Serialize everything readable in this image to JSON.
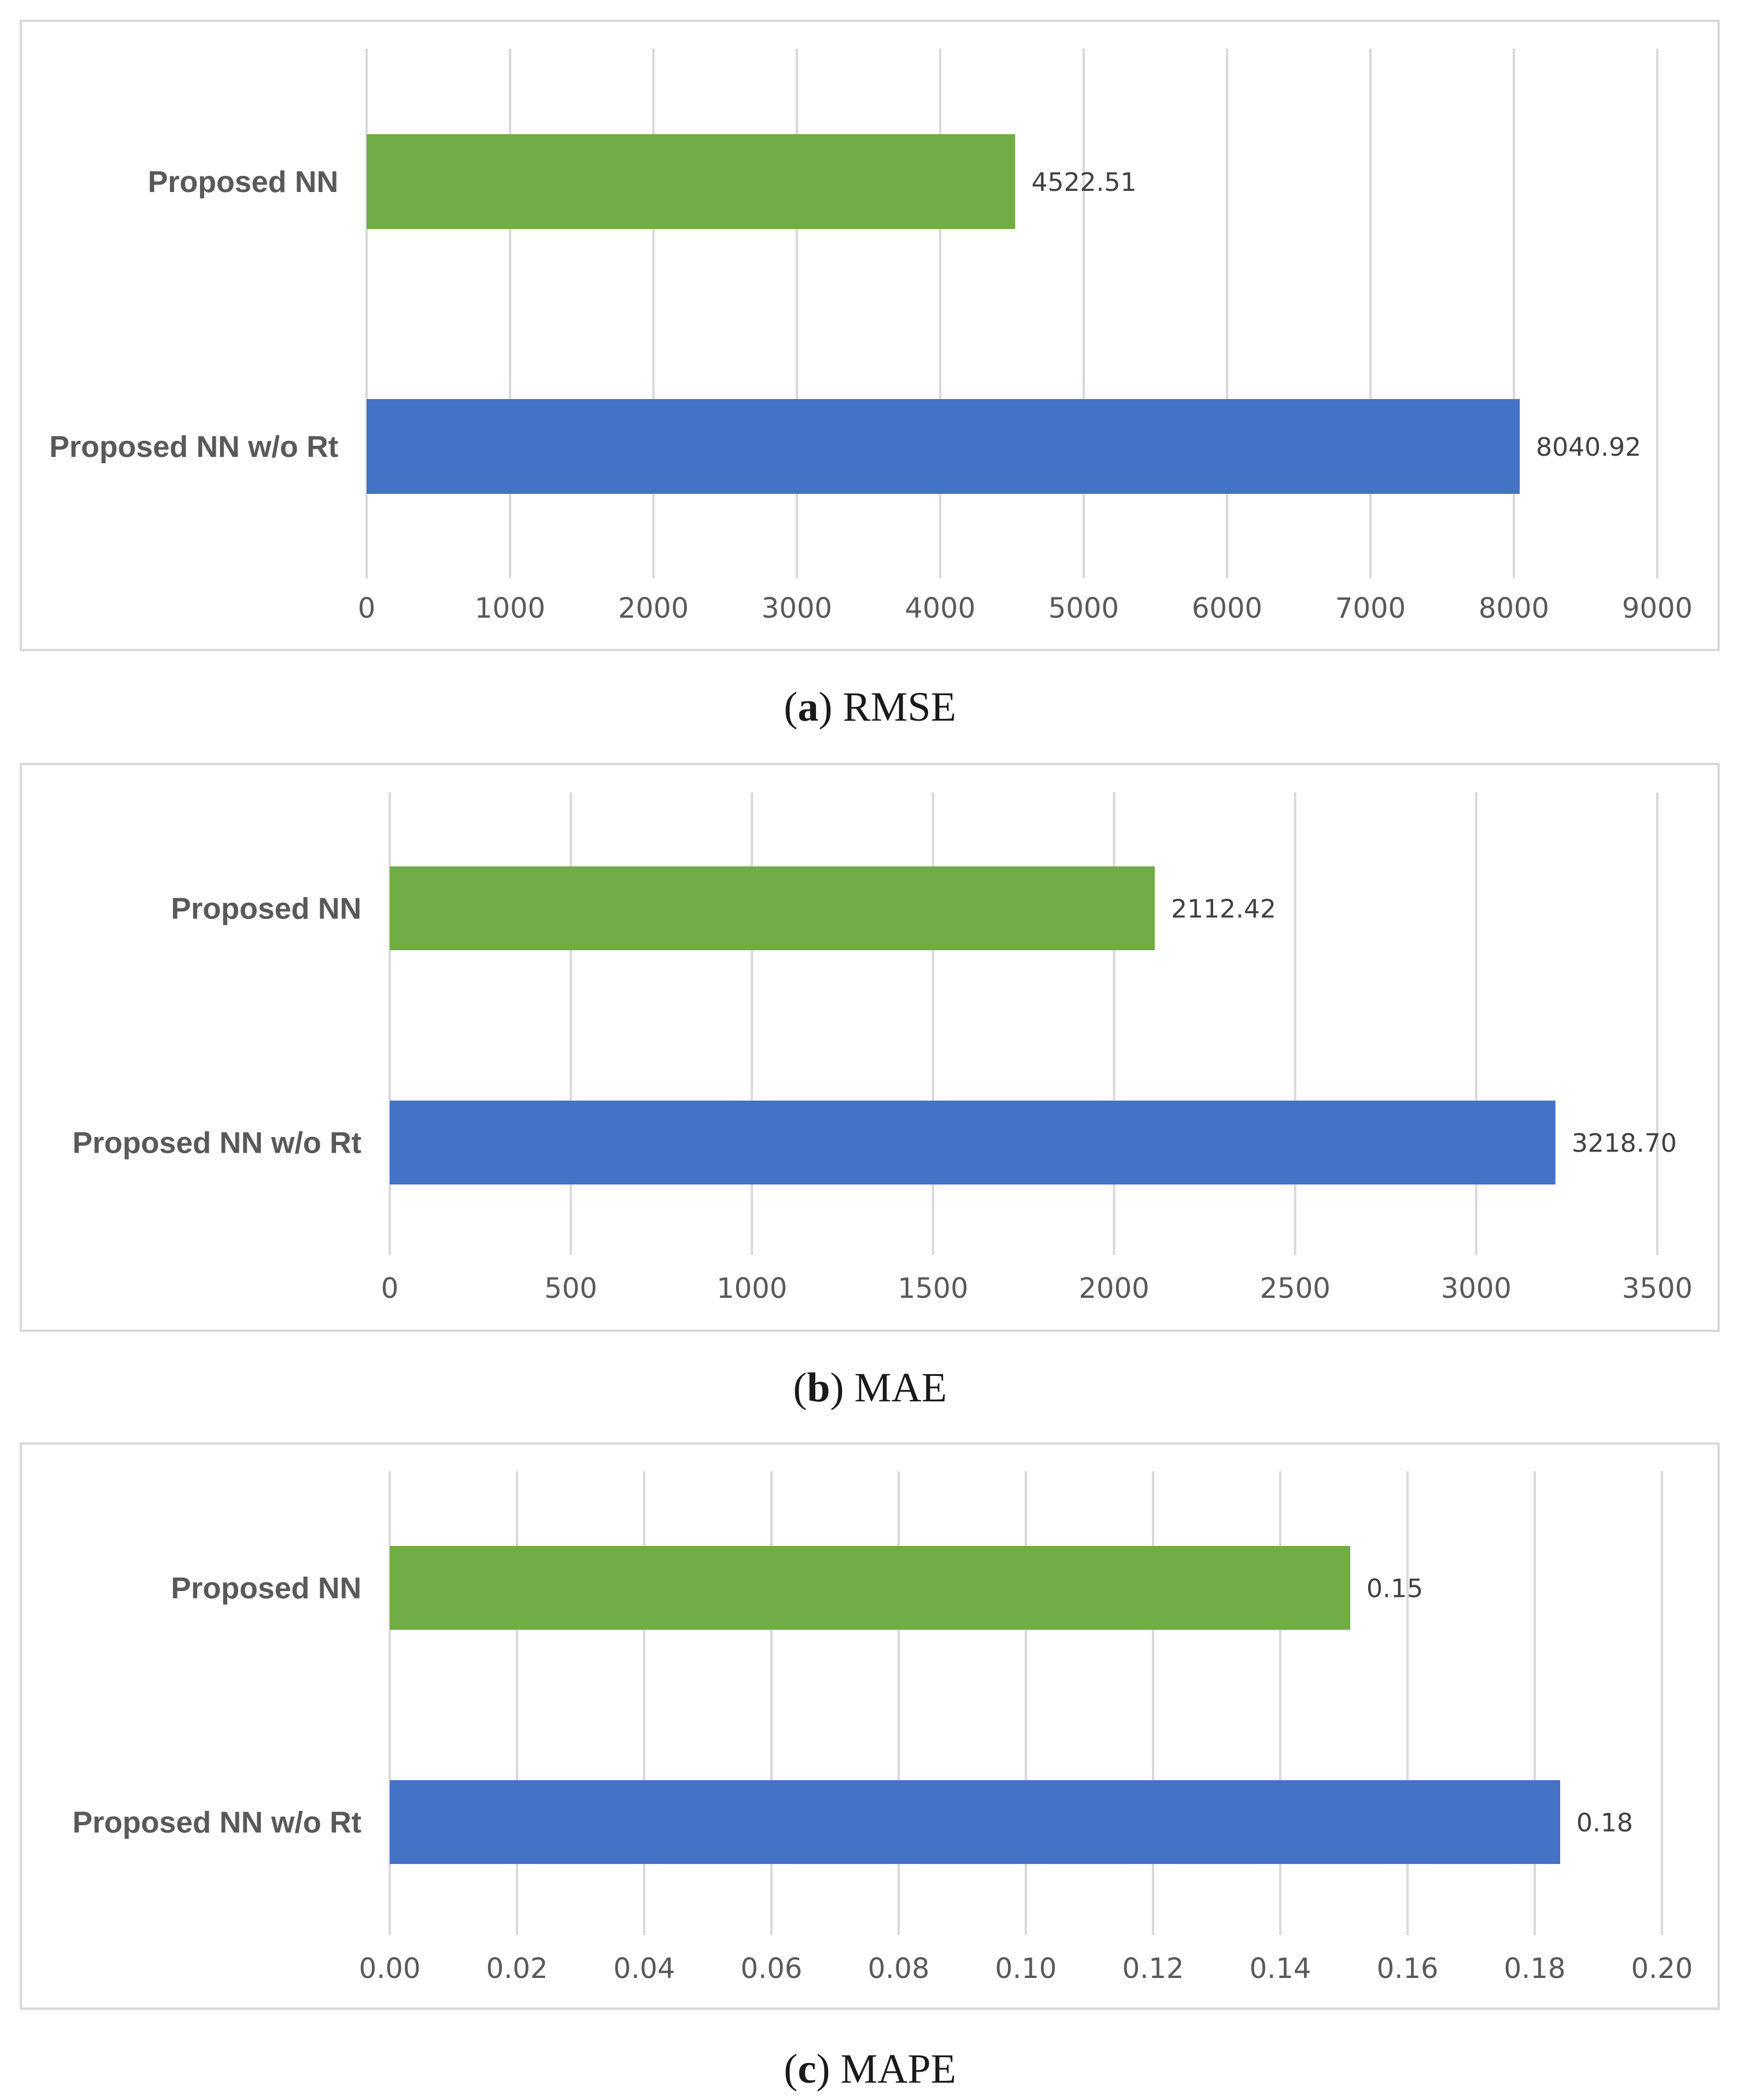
{
  "chart_data": [
    {
      "type": "bar",
      "orientation": "horizontal",
      "metric": "RMSE",
      "caption_letter": "a",
      "caption_text": "RMSE",
      "categories": [
        "Proposed NN",
        "Proposed NN w/o Rt"
      ],
      "values": [
        4522.51,
        8040.92
      ],
      "value_labels": [
        "4522.51",
        "8040.92"
      ],
      "bar_colors": [
        "#70ad47",
        "#4472c4"
      ],
      "xlim": [
        0,
        9000
      ],
      "xticks": [
        "0",
        "1000",
        "2000",
        "3000",
        "4000",
        "5000",
        "6000",
        "7000",
        "8000",
        "9000"
      ],
      "grid": true
    },
    {
      "type": "bar",
      "orientation": "horizontal",
      "metric": "MAE",
      "caption_letter": "b",
      "caption_text": "MAE",
      "categories": [
        "Proposed NN",
        "Proposed NN w/o Rt"
      ],
      "values": [
        2112.42,
        3218.7
      ],
      "value_labels": [
        "2112.42",
        "3218.70"
      ],
      "bar_colors": [
        "#70ad47",
        "#4472c4"
      ],
      "xlim": [
        0,
        3500
      ],
      "xticks": [
        "0",
        "500",
        "1000",
        "1500",
        "2000",
        "2500",
        "3000",
        "3500"
      ],
      "grid": true
    },
    {
      "type": "bar",
      "orientation": "horizontal",
      "metric": "MAPE",
      "caption_letter": "c",
      "caption_text": "MAPE",
      "categories": [
        "Proposed NN",
        "Proposed NN w/o Rt"
      ],
      "values": [
        0.151,
        0.184
      ],
      "value_labels": [
        "0.15",
        "0.18"
      ],
      "bar_colors": [
        "#70ad47",
        "#4472c4"
      ],
      "xlim": [
        0,
        0.2
      ],
      "xticks": [
        "0.00",
        "0.02",
        "0.04",
        "0.06",
        "0.08",
        "0.10",
        "0.12",
        "0.14",
        "0.16",
        "0.18",
        "0.20"
      ],
      "grid": true
    }
  ]
}
